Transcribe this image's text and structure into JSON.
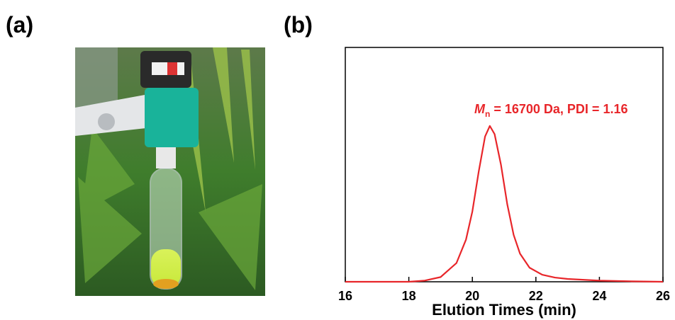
{
  "panel_a": {
    "label": "(a)"
  },
  "chart_data": {
    "type": "line",
    "panel_label": "(b)",
    "xlabel": "Elution Times (min)",
    "annotation": {
      "italic": "M",
      "subscript": "n",
      "text": " = 16700 Da, PDI = 1.16"
    },
    "annotation_color": "#e8262a",
    "x": [
      16,
      17,
      18,
      18.5,
      19,
      19.5,
      19.8,
      20,
      20.2,
      20.4,
      20.55,
      20.7,
      20.9,
      21.1,
      21.3,
      21.5,
      21.8,
      22.2,
      22.6,
      23,
      24,
      25,
      26
    ],
    "values": [
      0,
      0,
      0,
      0.005,
      0.02,
      0.08,
      0.18,
      0.3,
      0.47,
      0.62,
      0.665,
      0.63,
      0.5,
      0.33,
      0.2,
      0.12,
      0.06,
      0.03,
      0.018,
      0.012,
      0.005,
      0.002,
      0
    ],
    "color": "#e8262a",
    "xlim": [
      16,
      26
    ],
    "xticks": [
      16,
      18,
      20,
      22,
      24,
      26
    ],
    "ylim": [
      0,
      1
    ]
  }
}
